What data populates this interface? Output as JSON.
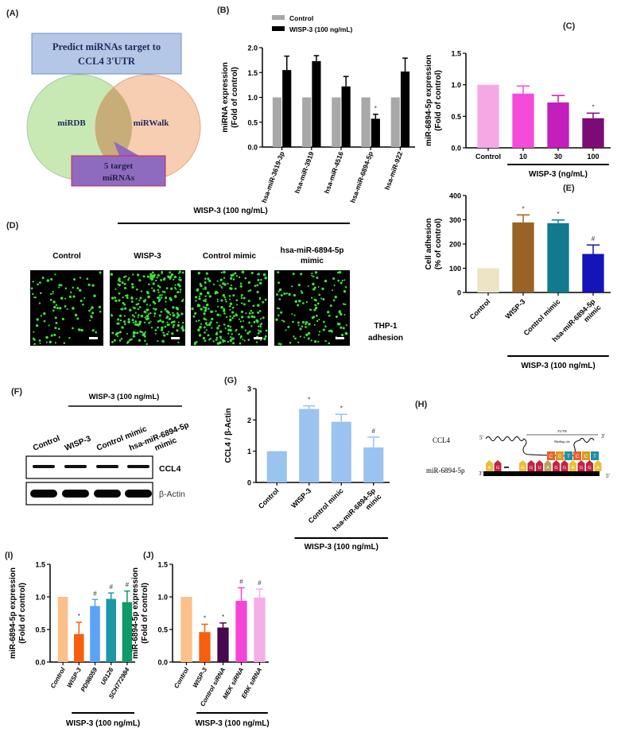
{
  "panel_a": {
    "label": "(A)",
    "box_title": [
      "Predict miRNAs target to",
      "CCL4 3'UTR"
    ],
    "circle_left": "miRDB",
    "circle_right": "miRWalk",
    "result": [
      "5 target",
      "miRNAs"
    ]
  },
  "panel_d": {
    "label": "(D)",
    "treatment": "WISP-3 (100 ng/mL)",
    "columns": [
      [
        "Control"
      ],
      [
        "WISP-3"
      ],
      [
        "Control mimic"
      ],
      [
        "hsa-miR-6894-5p",
        "mimic"
      ]
    ],
    "side_label": [
      "THP-1",
      "adhesion"
    ],
    "cell_density": [
      0.35,
      1.0,
      0.95,
      0.5
    ]
  },
  "panel_f": {
    "label": "(F)",
    "treatment": "WISP-3 (100 ng/mL)",
    "lanes": [
      [
        "Control"
      ],
      [
        "WISP-3"
      ],
      [
        "Control mimic"
      ],
      [
        "hsa-miR-6894-5p",
        "mimic"
      ]
    ],
    "bands": [
      "CCL4",
      "β-Actin"
    ]
  },
  "panel_h": {
    "label": "(H)",
    "gene": "CCL4",
    "mirna": "miR-6894-5p",
    "utr_label": "3'UTR",
    "binding_label": "Binding site",
    "five_prime": "5'",
    "three_prime": "3'",
    "top_bases": [
      "C",
      "C",
      "T",
      "C",
      "C",
      "T"
    ],
    "bottom_bases": [
      "A",
      "G",
      "",
      "",
      "G",
      "G",
      "U",
      "A",
      "G",
      "G",
      "A",
      "G",
      "G",
      "A"
    ]
  },
  "chart_data": [
    {
      "panel": "(B)",
      "type": "bar",
      "legend": [
        "Control",
        "WISP-3 (100 ng/mL)"
      ],
      "legend_placement": "top",
      "ylabel": [
        "miRNA expression",
        "(Fold of control)"
      ],
      "ylim": [
        0,
        2.0
      ],
      "yticks": [
        "0.0",
        "0.5",
        "1.0",
        "1.5",
        "2.0"
      ],
      "categories": [
        "hsa-miR-3619-3p",
        "hsa-miR-3919",
        "hsa-miR-4516",
        "hsa-miR-6894-5p",
        "hsa-miR-922"
      ],
      "series": [
        {
          "name": "Control",
          "color": "#a8a8a8",
          "values": [
            1,
            1,
            1,
            1,
            1
          ],
          "errors": [
            0,
            0,
            0,
            0,
            0
          ],
          "marks": [
            "",
            "",
            "",
            "",
            ""
          ]
        },
        {
          "name": "WISP-3 (100 ng/mL)",
          "color": "#000000",
          "values": [
            1.55,
            1.73,
            1.22,
            0.57,
            1.52
          ],
          "errors": [
            0.28,
            0.11,
            0.2,
            0.09,
            0.27
          ],
          "marks": [
            "",
            "",
            "",
            "*",
            ""
          ]
        }
      ]
    },
    {
      "panel": "(C)",
      "type": "bar",
      "ylabel": [
        "miR-6894-5p expression",
        "(Fold of control)"
      ],
      "ylim": [
        0,
        1.5
      ],
      "yticks": [
        "0.0",
        "0.5",
        "1.0",
        "1.5"
      ],
      "categories": [
        "Control",
        "10",
        "30",
        "100"
      ],
      "group_label": "WISP-3 (ng/mL)",
      "group_span": [
        1,
        3
      ],
      "series": [
        {
          "name": "miR-6894-5p",
          "colors": [
            "#f5a8e4",
            "#f44bd9",
            "#c21fbc",
            "#7c0b75"
          ],
          "values": [
            1.0,
            0.86,
            0.72,
            0.47
          ],
          "errors": [
            0,
            0.12,
            0.11,
            0.08
          ],
          "marks": [
            "",
            "",
            "",
            "*"
          ]
        }
      ]
    },
    {
      "panel": "(E)",
      "type": "bar",
      "ylabel": [
        "Cell adhesion",
        "(% of control)"
      ],
      "ylim": [
        0,
        400
      ],
      "yticks": [
        "0",
        "100",
        "200",
        "300",
        "400"
      ],
      "categories": [
        "Control",
        "WISP-3",
        "Control mimic",
        "hsa-miR-6894-5p\nmimic"
      ],
      "group_label": "WISP-3 (100 ng/mL)",
      "group_span": [
        1,
        3
      ],
      "series": [
        {
          "name": "Cell adhesion",
          "colors": [
            "#ede3c5",
            "#996326",
            "#127a8d",
            "#1414b8"
          ],
          "values": [
            100,
            289,
            286,
            159
          ],
          "errors": [
            0,
            31,
            13,
            37
          ],
          "marks": [
            "",
            "*",
            "*",
            "#"
          ]
        }
      ]
    },
    {
      "panel": "(G)",
      "type": "bar",
      "ylabel": [
        "CCL4 / β-Actin"
      ],
      "ylim": [
        0,
        3
      ],
      "yticks": [
        "0",
        "1",
        "2",
        "3"
      ],
      "categories": [
        "Control",
        "WISP-3",
        "Control minic",
        "hsa-miR-6894-5p\nminic"
      ],
      "group_label": "WISP-3 (100 ng/mL)",
      "group_span": [
        1,
        3
      ],
      "series": [
        {
          "name": "CCL4 / β-Actin",
          "colors": [
            "#9ac3f0",
            "#9ac3f0",
            "#9ac3f0",
            "#9ac3f0"
          ],
          "values": [
            1.0,
            2.35,
            1.94,
            1.12
          ],
          "errors": [
            0,
            0.1,
            0.24,
            0.33
          ],
          "marks": [
            "",
            "*",
            "*",
            "#"
          ]
        }
      ]
    },
    {
      "panel": "(I)",
      "type": "bar",
      "ylabel": [
        "miR-6894-5p expression",
        "(Fold of control)"
      ],
      "ylim": [
        0,
        1.5
      ],
      "yticks": [
        "0.0",
        "0.5",
        "1.0",
        "1.5"
      ],
      "categories": [
        "Control",
        "WISP-3",
        "PD98059",
        "U0126",
        "SCH772984"
      ],
      "group_label": "WISP-3 (100 ng/mL)",
      "group_span": [
        1,
        4
      ],
      "series": [
        {
          "name": "miR-6894-5p",
          "colors": [
            "#fcc08a",
            "#f65f0d",
            "#5aa3f5",
            "#1c97a8",
            "#0f9966"
          ],
          "values": [
            1.0,
            0.43,
            0.86,
            0.97,
            0.92
          ],
          "errors": [
            0,
            0.18,
            0.1,
            0.09,
            0.17
          ],
          "marks": [
            "",
            "*",
            "#",
            "#",
            "#"
          ]
        }
      ]
    },
    {
      "panel": "(J)",
      "type": "bar",
      "ylabel": [
        "miR-6894-5p expression",
        "(Fold of control)"
      ],
      "ylim": [
        0,
        1.5
      ],
      "yticks": [
        "0.0",
        "0.5",
        "1.0",
        "1.5"
      ],
      "categories": [
        "Control",
        "WISP-3",
        "Control siRNA",
        "MEK siRNA",
        "ERK siRNA"
      ],
      "group_label": "WISP-3 (100 ng/mL)",
      "group_span": [
        1,
        4
      ],
      "series": [
        {
          "name": "miR-6894-5p",
          "colors": [
            "#fcc08a",
            "#f65f0d",
            "#47084f",
            "#f545d6",
            "#f4afe7"
          ],
          "values": [
            1.0,
            0.46,
            0.53,
            0.94,
            0.99
          ],
          "errors": [
            0,
            0.12,
            0.07,
            0.2,
            0.13
          ],
          "marks": [
            "",
            "*",
            "*",
            "#",
            "#"
          ]
        }
      ]
    }
  ]
}
